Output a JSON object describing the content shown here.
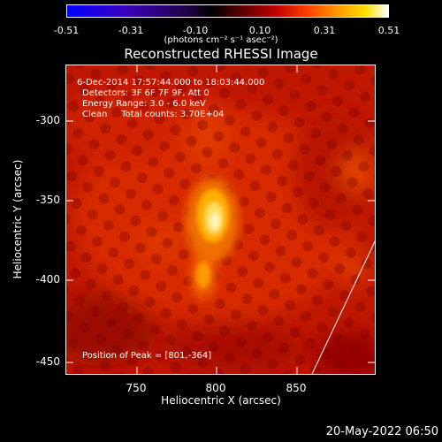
{
  "colorbar": {
    "ticks": [
      "-0.51",
      "-0.31",
      "-0.10",
      "0.10",
      "0.31",
      "0.51"
    ],
    "units": "(photons cm⁻² s⁻¹ asec⁻²)",
    "range": [
      -0.51,
      0.51
    ]
  },
  "plot": {
    "title": "Reconstructed RHESSI Image",
    "annotations": {
      "time": "6-Dec-2014 17:57:44.000 to 18:03:44.000",
      "detectors": "Detectors: 3F 6F 7F 9F, Att 0",
      "energy": "Energy Range: 3.0 - 6.0 keV",
      "clean": "Clean     Total counts: 3.70E+04",
      "peak": "Position of Peak = [801,-364]"
    },
    "x_axis": {
      "label": "Heliocentric X (arcsec)",
      "ticks": [
        "750",
        "800",
        "850"
      ],
      "range": [
        708,
        898
      ]
    },
    "y_axis": {
      "label": "Heliocentric Y (arcsec)",
      "ticks": [
        "-300",
        "-350",
        "-400",
        "-450"
      ],
      "range": [
        -459,
        -269
      ]
    },
    "sources": [
      {
        "x": 801,
        "y": -364,
        "peak": "max"
      },
      {
        "x": 794,
        "y": -396,
        "peak": "secondary"
      }
    ],
    "limb": "white line in lower right"
  },
  "footer": {
    "date": "20-May-2022 06:50"
  }
}
